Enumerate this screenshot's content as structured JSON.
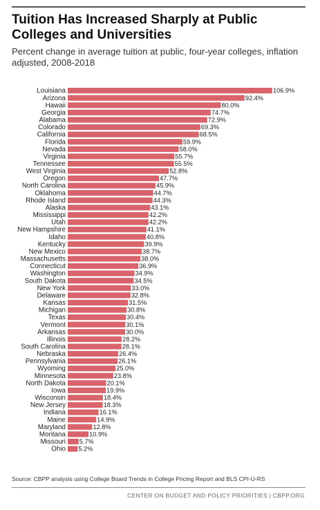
{
  "title": "Tuition Has Increased Sharply at Public Colleges and Universities",
  "subtitle": "Percent change in average tuition at public, four-year colleges, inflation adjusted, 2008-2018",
  "source": "Source: CBPP analysis using College Board Trends in College Pricing Report and BLS CPI-U-RS",
  "credit": "CENTER ON BUDGET AND POLICY PRIORITIES | CBPP.ORG",
  "colors": {
    "bar": "#d9646b",
    "text": "#222222"
  },
  "chart_data": {
    "type": "bar",
    "orientation": "horizontal",
    "grid": false,
    "categories": [
      "Louisiana",
      "Arizona",
      "Hawaii",
      "Georgia",
      "Alabama",
      "Colorado",
      "California",
      "Florida",
      "Nevada",
      "Virginia",
      "Tennessee",
      "West Virginia",
      "Oregon",
      "North Carolina",
      "Oklahoma",
      "Rhode Island",
      "Alaska",
      "Mississippi",
      "Utah",
      "New Hampshire",
      "Idaho",
      "Kentucky",
      "New Mexico",
      "Massachusetts",
      "Connecticut",
      "Washington",
      "South Dakota",
      "New York",
      "Delaware",
      "Kansas",
      "Michigan",
      "Texas",
      "Vermont",
      "Arkansas",
      "Illinois",
      "South Carolina",
      "Nebraska",
      "Pennsylvania",
      "Wyoming",
      "Minnesota",
      "North Dakota",
      "Iowa",
      "Wisconsin",
      "New Jersey",
      "Indiana",
      "Maine",
      "Maryland",
      "Montana",
      "Missouri",
      "Ohio"
    ],
    "values": [
      106.9,
      92.4,
      80.0,
      74.7,
      72.9,
      69.3,
      68.5,
      59.9,
      58.0,
      55.7,
      55.5,
      52.8,
      47.7,
      45.9,
      44.7,
      44.3,
      43.1,
      42.2,
      42.2,
      41.1,
      40.8,
      39.9,
      38.7,
      38.0,
      36.9,
      34.9,
      34.5,
      33.0,
      32.8,
      31.5,
      30.8,
      30.4,
      30.1,
      30.0,
      28.2,
      28.1,
      26.4,
      26.1,
      25.0,
      23.8,
      20.1,
      19.9,
      18.4,
      18.3,
      16.1,
      14.9,
      12.8,
      10.9,
      5.7,
      5.2
    ],
    "labels": [
      "106.9%",
      "92.4%",
      "80.0%",
      "74.7%",
      "72.9%",
      "69.3%",
      "68.5%",
      "59.9%",
      "58.0%",
      "55.7%",
      "55.5%",
      "52.8%",
      "47.7%",
      "45.9%",
      "44.7%",
      "44.3%",
      "43.1%",
      "42.2%",
      "42.2%",
      "41.1%",
      "40.8%",
      "39.9%",
      "38.7%",
      "38.0%",
      "36.9%",
      "34.9%",
      "34.5%",
      "33.0%",
      "32.8%",
      "31.5%",
      "30.8%",
      "30.4%",
      "30.1%",
      "30.0%",
      "28.2%",
      "28.1%",
      "26.4%",
      "26.1%",
      "25.0%",
      "23.8%",
      "20.1%",
      "19.9%",
      "18.4%",
      "18.3%",
      "16.1%",
      "14.9%",
      "12.8%",
      "10.9%",
      "5.7%",
      "5.2%"
    ],
    "xlim": [
      0,
      106.9
    ]
  }
}
